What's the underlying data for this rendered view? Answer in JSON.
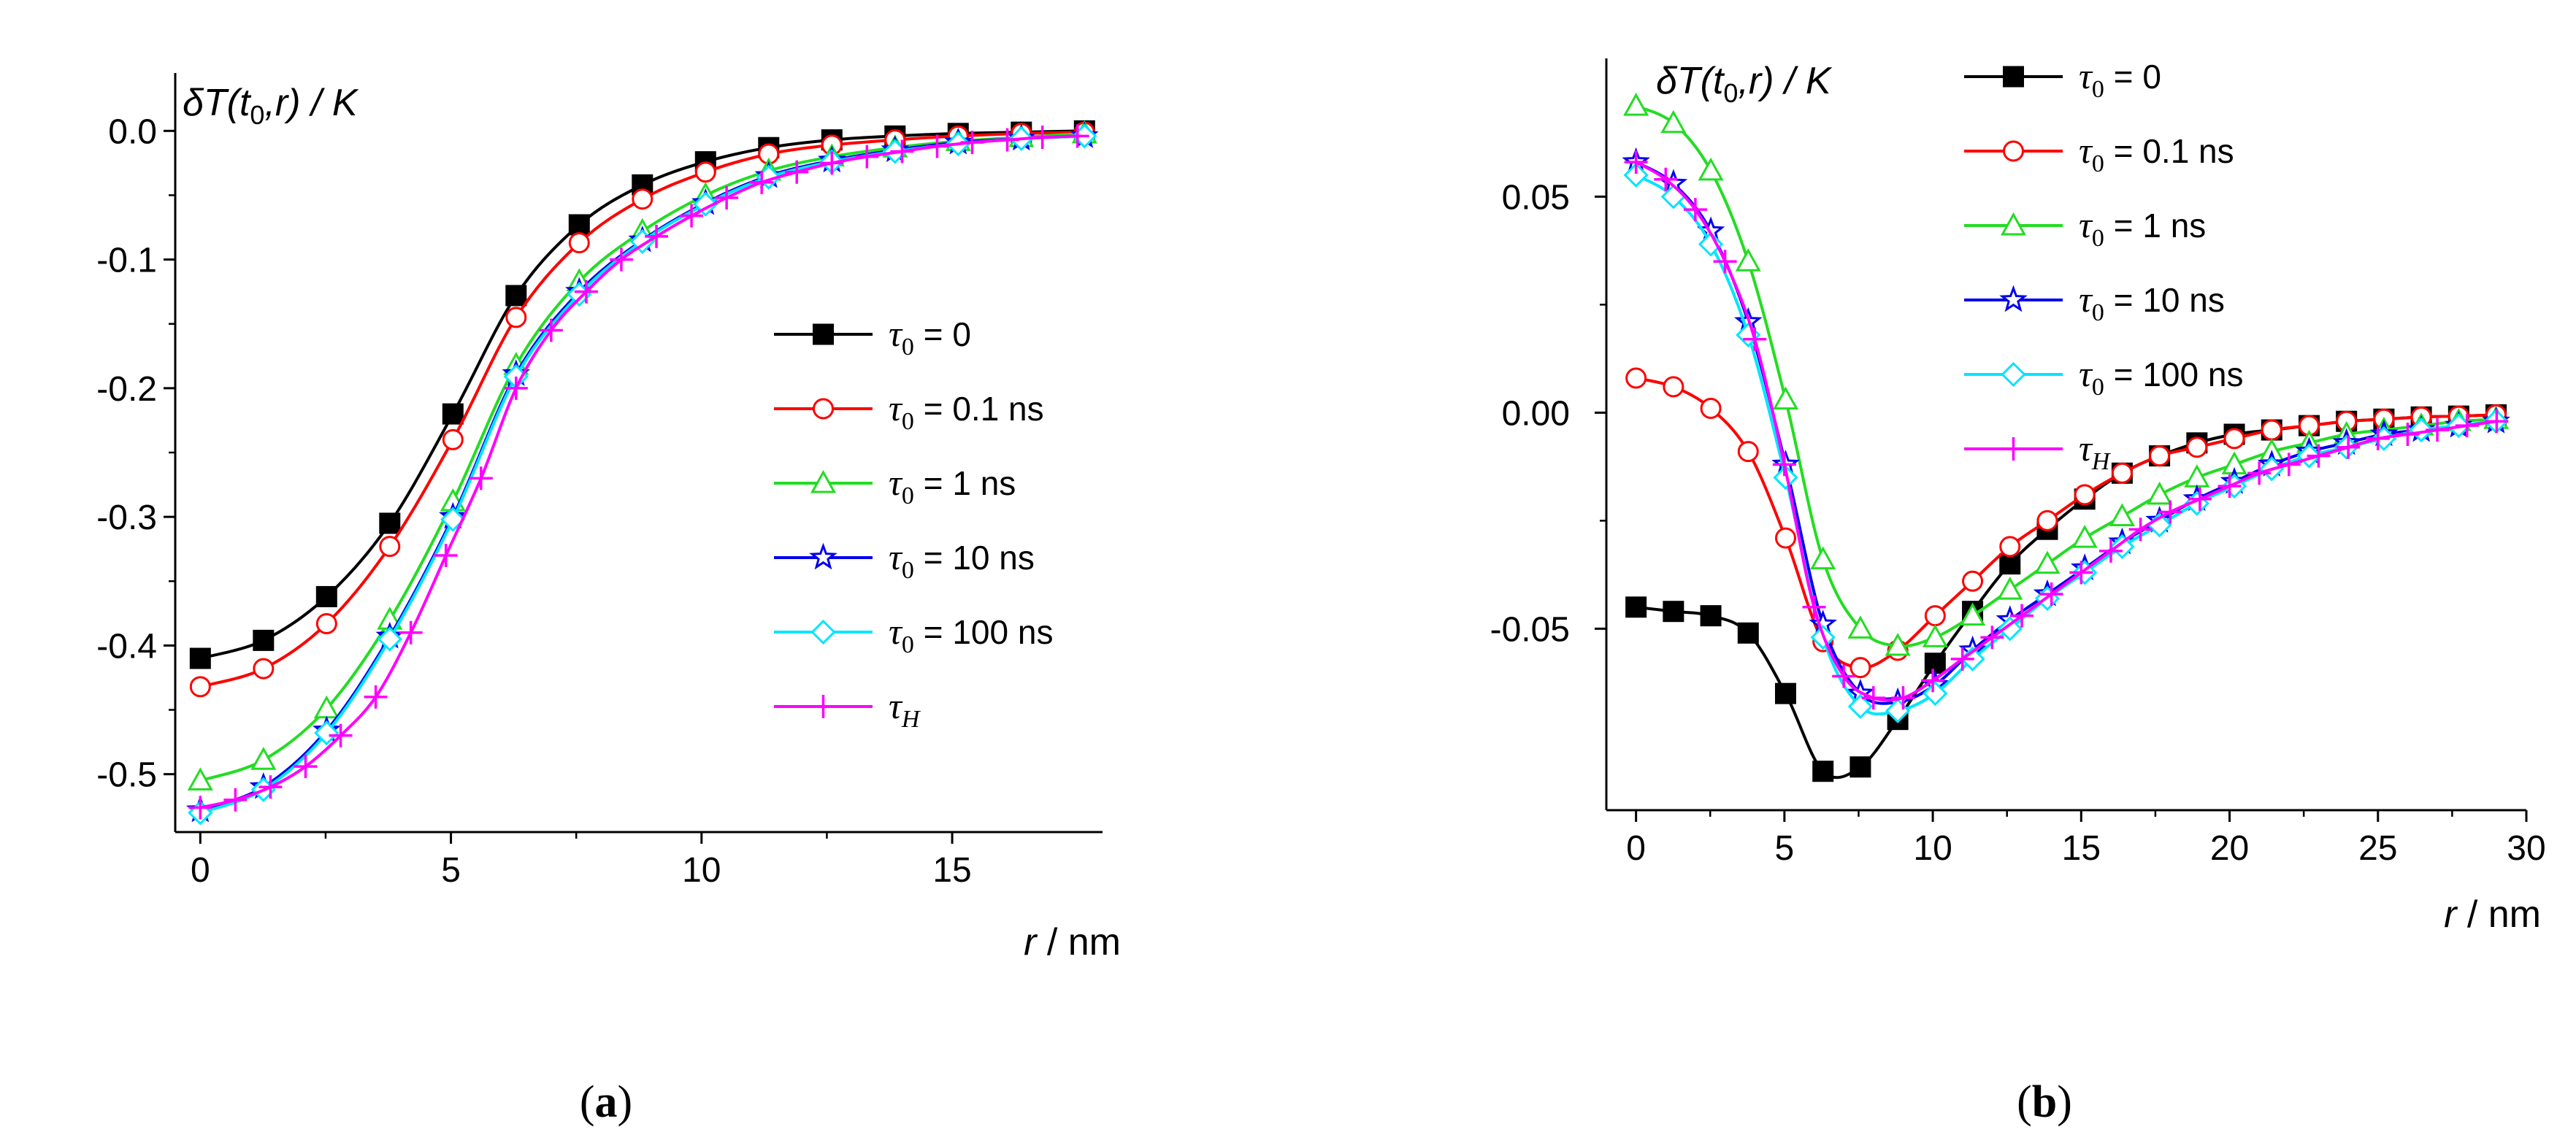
{
  "chart_data": [
    {
      "type": "line",
      "panel_label": "(a)",
      "ylabel_parts": [
        "δT(t",
        "0",
        ",r) / K"
      ],
      "xlabel_parts": [
        "r",
        " / nm"
      ],
      "xlim": [
        -0.5,
        18
      ],
      "ylim": [
        -0.545,
        0.045
      ],
      "xticks": [
        0,
        5,
        10,
        15
      ],
      "xtick_labels": [
        "0",
        "5",
        "10",
        "15"
      ],
      "yticks": [
        0.0,
        -0.1,
        -0.2,
        -0.3,
        -0.4,
        -0.5
      ],
      "ytick_labels": [
        "0.0",
        "-0.1",
        "-0.2",
        "-0.3",
        "-0.4",
        "-0.5"
      ],
      "legend_position": "right-middle",
      "series": [
        {
          "name": "τ_0 = 0",
          "label_main": "τ",
          "label_sub": "0",
          "label_rest": " = 0",
          "color": "#000000",
          "marker": "square",
          "marker_fill": "#000000",
          "x": [
            0,
            1.26,
            2.52,
            3.78,
            5.04,
            6.3,
            7.56,
            8.82,
            10.08,
            11.34,
            12.6,
            13.86,
            15.12,
            16.38,
            17.64
          ],
          "y": [
            -0.41,
            -0.396,
            -0.362,
            -0.305,
            -0.22,
            -0.128,
            -0.073,
            -0.042,
            -0.024,
            -0.013,
            -0.007,
            -0.004,
            -0.002,
            -0.001,
            0.0
          ]
        },
        {
          "name": "τ_0 = 0.1 ns",
          "label_main": "τ",
          "label_sub": "0",
          "label_rest": " = 0.1 ns",
          "color": "#ff0000",
          "marker": "circle",
          "marker_fill": "#ffffff",
          "x": [
            0,
            1.26,
            2.52,
            3.78,
            5.04,
            6.3,
            7.56,
            8.82,
            10.08,
            11.34,
            12.6,
            13.86,
            15.12,
            16.38,
            17.64
          ],
          "y": [
            -0.432,
            -0.418,
            -0.383,
            -0.323,
            -0.24,
            -0.145,
            -0.087,
            -0.053,
            -0.032,
            -0.018,
            -0.011,
            -0.007,
            -0.004,
            -0.002,
            -0.001
          ]
        },
        {
          "name": "τ_0 = 1 ns",
          "label_main": "τ",
          "label_sub": "0",
          "label_rest": " = 1 ns",
          "color": "#22dd22",
          "marker": "triangle",
          "marker_fill": "#ffffff",
          "x": [
            0,
            1.26,
            2.52,
            3.78,
            5.04,
            6.3,
            7.56,
            8.82,
            10.08,
            11.34,
            12.6,
            13.86,
            15.12,
            16.38,
            17.64
          ],
          "y": [
            -0.505,
            -0.489,
            -0.449,
            -0.38,
            -0.288,
            -0.182,
            -0.117,
            -0.078,
            -0.05,
            -0.031,
            -0.02,
            -0.013,
            -0.008,
            -0.005,
            -0.002
          ]
        },
        {
          "name": "τ_0 = 10 ns",
          "label_main": "τ",
          "label_sub": "0",
          "label_rest": " = 10 ns",
          "color": "#0000ee",
          "marker": "star",
          "marker_fill": "#ffffff",
          "x": [
            0,
            1.26,
            2.52,
            3.78,
            5.04,
            6.3,
            7.56,
            8.82,
            10.08,
            11.34,
            12.6,
            13.86,
            15.12,
            16.38,
            17.64
          ],
          "y": [
            -0.528,
            -0.51,
            -0.466,
            -0.393,
            -0.3,
            -0.189,
            -0.125,
            -0.085,
            -0.056,
            -0.035,
            -0.023,
            -0.015,
            -0.009,
            -0.006,
            -0.004
          ]
        },
        {
          "name": "τ_0 = 100 ns",
          "label_main": "τ",
          "label_sub": "0",
          "label_rest": " = 100 ns",
          "color": "#00e5ff",
          "marker": "diamond",
          "marker_fill": "#ffffff",
          "x": [
            0,
            1.26,
            2.52,
            3.78,
            5.04,
            6.3,
            7.56,
            8.82,
            10.08,
            11.34,
            12.6,
            13.86,
            15.12,
            16.38,
            17.64
          ],
          "y": [
            -0.53,
            -0.512,
            -0.468,
            -0.395,
            -0.302,
            -0.191,
            -0.127,
            -0.086,
            -0.057,
            -0.036,
            -0.024,
            -0.016,
            -0.01,
            -0.006,
            -0.004
          ]
        },
        {
          "name": "τ_H",
          "label_main": "τ",
          "label_sub": "H",
          "label_rest": "",
          "color": "#ff00ff",
          "marker": "plus",
          "marker_fill": "#ff00ff",
          "x": [
            0,
            0.7,
            1.4,
            2.1,
            2.8,
            3.5,
            4.2,
            4.9,
            5.6,
            6.3,
            7.0,
            7.7,
            8.4,
            9.1,
            9.8,
            10.5,
            11.2,
            11.9,
            12.6,
            13.3,
            14.0,
            14.7,
            15.4,
            16.1,
            16.8,
            17.5
          ],
          "y": [
            -0.526,
            -0.52,
            -0.51,
            -0.494,
            -0.47,
            -0.44,
            -0.39,
            -0.33,
            -0.27,
            -0.2,
            -0.155,
            -0.125,
            -0.1,
            -0.082,
            -0.066,
            -0.052,
            -0.04,
            -0.032,
            -0.025,
            -0.02,
            -0.016,
            -0.012,
            -0.009,
            -0.007,
            -0.005,
            -0.004
          ]
        }
      ]
    },
    {
      "type": "line",
      "panel_label": "(b)",
      "ylabel_parts": [
        "δT(t",
        "0",
        ",r) / K"
      ],
      "xlabel_parts": [
        "r",
        " / nm"
      ],
      "xlim": [
        -1,
        30
      ],
      "ylim": [
        -0.092,
        0.082
      ],
      "xticks": [
        0,
        5,
        10,
        15,
        20,
        25,
        30
      ],
      "xtick_labels": [
        "0",
        "5",
        "10",
        "15",
        "20",
        "25",
        "30"
      ],
      "yticks": [
        0.05,
        0.0,
        -0.05
      ],
      "ytick_labels": [
        "0.05",
        "0.00",
        "-0.05"
      ],
      "legend_position": "top-right",
      "series": [
        {
          "name": "τ_0 = 0",
          "label_main": "τ",
          "label_sub": "0",
          "label_rest": " = 0",
          "color": "#000000",
          "marker": "square",
          "marker_fill": "#000000",
          "x": [
            0,
            1.26,
            2.52,
            3.78,
            5.04,
            6.3,
            7.56,
            8.82,
            10.08,
            11.34,
            12.6,
            13.86,
            15.12,
            16.38,
            17.64,
            18.9,
            20.16,
            21.42,
            22.68,
            23.94,
            25.2,
            26.46,
            27.72,
            28.98
          ],
          "y": [
            -0.045,
            -0.046,
            -0.047,
            -0.051,
            -0.065,
            -0.083,
            -0.082,
            -0.071,
            -0.058,
            -0.046,
            -0.035,
            -0.027,
            -0.02,
            -0.014,
            -0.01,
            -0.007,
            -0.005,
            -0.004,
            -0.003,
            -0.002,
            -0.0015,
            -0.001,
            -0.0008,
            -0.0005
          ]
        },
        {
          "name": "τ_0 = 0.1 ns",
          "label_main": "τ",
          "label_sub": "0",
          "label_rest": " = 0.1 ns",
          "color": "#ff0000",
          "marker": "circle",
          "marker_fill": "#ffffff",
          "x": [
            0,
            1.26,
            2.52,
            3.78,
            5.04,
            6.3,
            7.56,
            8.82,
            10.08,
            11.34,
            12.6,
            13.86,
            15.12,
            16.38,
            17.64,
            18.9,
            20.16,
            21.42,
            22.68,
            23.94,
            25.2,
            26.46,
            27.72,
            28.98
          ],
          "y": [
            0.008,
            0.006,
            0.001,
            -0.009,
            -0.029,
            -0.053,
            -0.059,
            -0.055,
            -0.047,
            -0.039,
            -0.031,
            -0.025,
            -0.019,
            -0.014,
            -0.01,
            -0.008,
            -0.006,
            -0.004,
            -0.003,
            -0.002,
            -0.0015,
            -0.001,
            -0.0008,
            -0.0005
          ]
        },
        {
          "name": "τ_0 = 1 ns",
          "label_main": "τ",
          "label_sub": "0",
          "label_rest": " = 1 ns",
          "color": "#22dd22",
          "marker": "triangle",
          "marker_fill": "#ffffff",
          "x": [
            0,
            1.26,
            2.52,
            3.78,
            5.04,
            6.3,
            7.56,
            8.82,
            10.08,
            11.34,
            12.6,
            13.86,
            15.12,
            16.38,
            17.64,
            18.9,
            20.16,
            21.42,
            22.68,
            23.94,
            25.2,
            26.46,
            27.72,
            28.98
          ],
          "y": [
            0.071,
            0.067,
            0.056,
            0.035,
            0.003,
            -0.034,
            -0.05,
            -0.054,
            -0.052,
            -0.047,
            -0.041,
            -0.035,
            -0.029,
            -0.024,
            -0.019,
            -0.015,
            -0.012,
            -0.009,
            -0.007,
            -0.005,
            -0.004,
            -0.003,
            -0.002,
            -0.0015
          ]
        },
        {
          "name": "τ_0 = 10 ns",
          "label_main": "τ",
          "label_sub": "0",
          "label_rest": " = 10 ns",
          "color": "#0000ee",
          "marker": "star",
          "marker_fill": "#ffffff",
          "x": [
            0,
            1.26,
            2.52,
            3.78,
            5.04,
            6.3,
            7.56,
            8.82,
            10.08,
            11.34,
            12.6,
            13.86,
            15.12,
            16.38,
            17.64,
            18.9,
            20.16,
            21.42,
            22.68,
            23.94,
            25.2,
            26.46,
            27.72,
            28.98
          ],
          "y": [
            0.058,
            0.053,
            0.042,
            0.021,
            -0.012,
            -0.049,
            -0.065,
            -0.067,
            -0.063,
            -0.055,
            -0.048,
            -0.042,
            -0.036,
            -0.03,
            -0.025,
            -0.02,
            -0.016,
            -0.012,
            -0.009,
            -0.007,
            -0.005,
            -0.004,
            -0.003,
            -0.002
          ]
        },
        {
          "name": "τ_0 = 100 ns",
          "label_main": "τ",
          "label_sub": "0",
          "label_rest": " = 100 ns",
          "color": "#00e5ff",
          "marker": "diamond",
          "marker_fill": "#ffffff",
          "x": [
            0,
            1.26,
            2.52,
            3.78,
            5.04,
            6.3,
            7.56,
            8.82,
            10.08,
            11.34,
            12.6,
            13.86,
            15.12,
            16.38,
            17.64,
            18.9,
            20.16,
            21.42,
            22.68,
            23.94,
            25.2,
            26.46,
            27.72,
            28.98
          ],
          "y": [
            0.055,
            0.05,
            0.039,
            0.018,
            -0.015,
            -0.052,
            -0.068,
            -0.069,
            -0.065,
            -0.057,
            -0.05,
            -0.043,
            -0.037,
            -0.031,
            -0.026,
            -0.021,
            -0.017,
            -0.013,
            -0.01,
            -0.008,
            -0.006,
            -0.004,
            -0.003,
            -0.002
          ]
        },
        {
          "name": "τ_H",
          "label_main": "τ",
          "label_sub": "H",
          "label_rest": "",
          "color": "#ff00ff",
          "marker": "plus",
          "marker_fill": "#ff00ff",
          "x": [
            0,
            1,
            2,
            3,
            4,
            5,
            6,
            7,
            8,
            9,
            10,
            11,
            12,
            13,
            14,
            15,
            16,
            17,
            18,
            19,
            20,
            21,
            22,
            23,
            24,
            25,
            26,
            27,
            28,
            29
          ],
          "y": [
            0.058,
            0.054,
            0.047,
            0.035,
            0.017,
            -0.012,
            -0.045,
            -0.061,
            -0.066,
            -0.066,
            -0.062,
            -0.057,
            -0.052,
            -0.047,
            -0.042,
            -0.037,
            -0.032,
            -0.027,
            -0.023,
            -0.02,
            -0.017,
            -0.014,
            -0.012,
            -0.01,
            -0.008,
            -0.006,
            -0.005,
            -0.004,
            -0.003,
            -0.002
          ]
        }
      ]
    }
  ]
}
